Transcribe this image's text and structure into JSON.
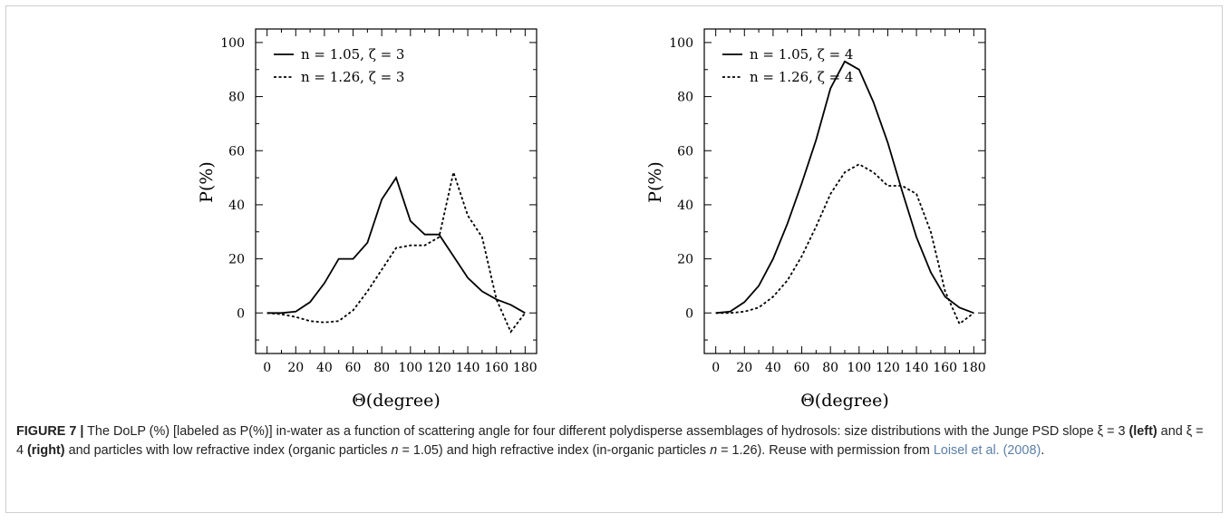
{
  "chart_data": [
    {
      "type": "line",
      "xlabel": "Θ(degree)",
      "ylabel": "P(%)",
      "xlim": [
        -8,
        188
      ],
      "ylim": [
        -15,
        105
      ],
      "xticks": [
        0,
        20,
        40,
        60,
        80,
        100,
        120,
        140,
        160,
        180
      ],
      "yticks": [
        0,
        20,
        40,
        60,
        80,
        100
      ],
      "legend_position": "top-left",
      "series": [
        {
          "name": "n = 1.05, ζ = 3",
          "style": "solid",
          "x": [
            0,
            10,
            20,
            30,
            40,
            50,
            60,
            70,
            80,
            90,
            100,
            110,
            120,
            130,
            140,
            150,
            160,
            170,
            180
          ],
          "y": [
            0,
            0,
            0.5,
            4,
            11,
            20,
            20,
            26,
            42,
            50,
            34,
            29,
            29,
            21,
            13,
            8,
            5,
            3,
            0
          ]
        },
        {
          "name": "n = 1.26, ζ = 3",
          "style": "dotted",
          "x": [
            0,
            10,
            20,
            30,
            40,
            50,
            60,
            70,
            80,
            90,
            100,
            110,
            120,
            130,
            140,
            150,
            160,
            170,
            180
          ],
          "y": [
            0,
            -0.5,
            -1.5,
            -3,
            -3.5,
            -3,
            1,
            8,
            16,
            24,
            25,
            25,
            28,
            52,
            36,
            28,
            5,
            -7,
            0
          ]
        }
      ]
    },
    {
      "type": "line",
      "xlabel": "Θ(degree)",
      "ylabel": "P(%)",
      "xlim": [
        -8,
        188
      ],
      "ylim": [
        -15,
        105
      ],
      "xticks": [
        0,
        20,
        40,
        60,
        80,
        100,
        120,
        140,
        160,
        180
      ],
      "yticks": [
        0,
        20,
        40,
        60,
        80,
        100
      ],
      "legend_position": "top-left",
      "series": [
        {
          "name": "n = 1.05, ζ = 4",
          "style": "solid",
          "x": [
            0,
            10,
            20,
            30,
            40,
            50,
            60,
            70,
            80,
            90,
            100,
            110,
            120,
            130,
            140,
            150,
            160,
            170,
            180
          ],
          "y": [
            0,
            0.5,
            4,
            10,
            20,
            33,
            48,
            64,
            83,
            93,
            90,
            78,
            63,
            45,
            28,
            15,
            6,
            2,
            0
          ]
        },
        {
          "name": "n = 1.26, ζ = 4",
          "style": "dotted",
          "x": [
            0,
            10,
            20,
            30,
            40,
            50,
            60,
            70,
            80,
            90,
            100,
            110,
            120,
            130,
            140,
            150,
            160,
            170,
            180
          ],
          "y": [
            0,
            0,
            0.5,
            2,
            6,
            12,
            21,
            32,
            44,
            52,
            55,
            52,
            47,
            47,
            44,
            30,
            8,
            -4,
            0
          ]
        }
      ]
    }
  ],
  "caption": {
    "label": "FIGURE 7 |",
    "text_1": " The DoLP (%) [labeled as P(%)] in-water as a function of scattering angle for four different polydisperse assemblages of hydrosols: size distributions with the Junge PSD slope ξ = 3 ",
    "left": "(left)",
    "text_2": " and ξ = 4 ",
    "right": "(right)",
    "text_3": " and particles with low refractive index (organic particles ",
    "n_sym_1": "n",
    "text_4": " = 1.05) and high refractive index (in-organic particles ",
    "n_sym_2": "n",
    "text_5": " = 1.26). Reuse with permission from ",
    "citation": "Loisel et al. (2008)",
    "text_6": "."
  }
}
